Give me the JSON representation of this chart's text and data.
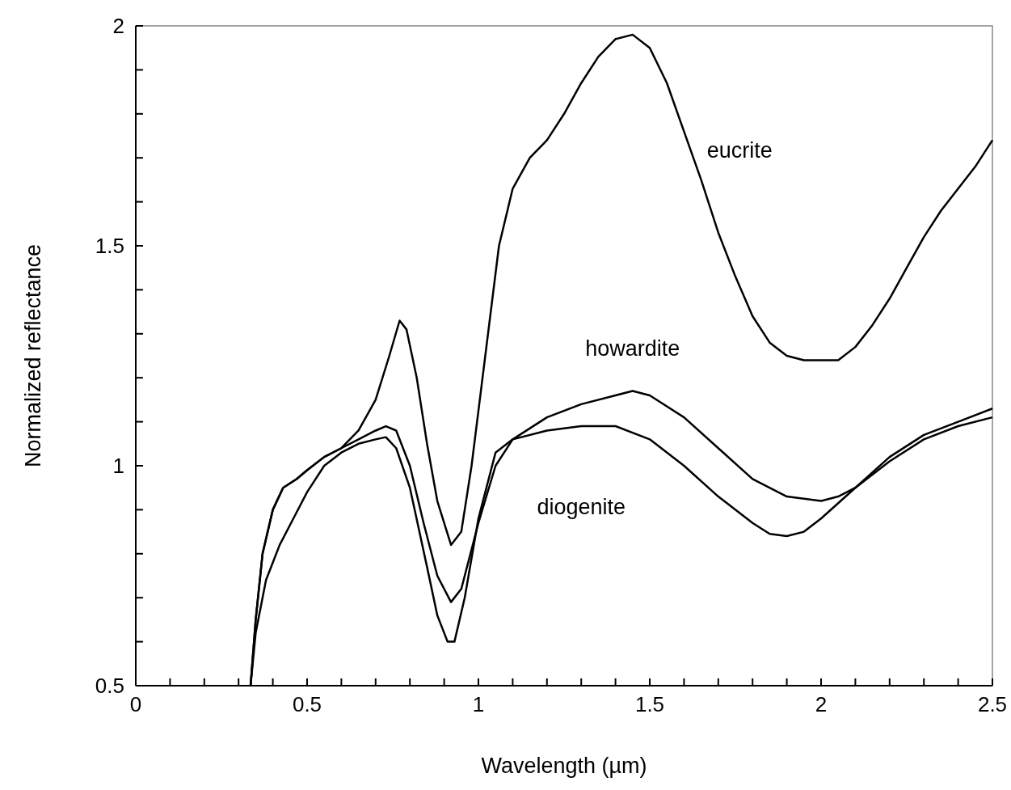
{
  "chart_data": {
    "type": "line",
    "xlabel": "Wavelength (µm)",
    "ylabel": "Normalized reflectance",
    "xlim": [
      0,
      2.5
    ],
    "ylim": [
      0.5,
      2
    ],
    "xticks": [
      0,
      {
        "value": 0.1,
        "label": null
      },
      {
        "value": 0.2,
        "label": null
      },
      {
        "value": 0.3,
        "label": null
      },
      {
        "value": 0.4,
        "label": null
      },
      0.5,
      {
        "value": 0.6,
        "label": null
      },
      {
        "value": 0.7,
        "label": null
      },
      {
        "value": 0.8,
        "label": null
      },
      {
        "value": 0.9,
        "label": null
      },
      1,
      {
        "value": 1.1,
        "label": null
      },
      {
        "value": 1.2,
        "label": null
      },
      {
        "value": 1.3,
        "label": null
      },
      {
        "value": 1.4,
        "label": null
      },
      1.5,
      {
        "value": 1.6,
        "label": null
      },
      {
        "value": 1.7,
        "label": null
      },
      {
        "value": 1.8,
        "label": null
      },
      {
        "value": 1.9,
        "label": null
      },
      2,
      {
        "value": 2.1,
        "label": null
      },
      {
        "value": 2.2,
        "label": null
      },
      {
        "value": 2.3,
        "label": null
      },
      {
        "value": 2.4,
        "label": null
      },
      2.5
    ],
    "yticks": [
      0.5,
      {
        "value": 0.6,
        "label": null
      },
      {
        "value": 0.7,
        "label": null
      },
      {
        "value": 0.8,
        "label": null
      },
      {
        "value": 0.9,
        "label": null
      },
      1,
      {
        "value": 1.1,
        "label": null
      },
      {
        "value": 1.2,
        "label": null
      },
      {
        "value": 1.3,
        "label": null
      },
      {
        "value": 1.4,
        "label": null
      },
      1.5,
      {
        "value": 1.6,
        "label": null
      },
      {
        "value": 1.7,
        "label": null
      },
      {
        "value": 1.8,
        "label": null
      },
      {
        "value": 1.9,
        "label": null
      },
      2
    ],
    "series": [
      {
        "name": "eucrite",
        "color": "#000000",
        "x": [
          0.335,
          0.35,
          0.37,
          0.4,
          0.43,
          0.47,
          0.5,
          0.55,
          0.6,
          0.65,
          0.7,
          0.74,
          0.77,
          0.79,
          0.82,
          0.85,
          0.88,
          0.92,
          0.95,
          0.98,
          1.02,
          1.06,
          1.1,
          1.15,
          1.2,
          1.25,
          1.3,
          1.35,
          1.4,
          1.45,
          1.5,
          1.55,
          1.6,
          1.65,
          1.7,
          1.75,
          1.8,
          1.85,
          1.9,
          1.95,
          2.0,
          2.05,
          2.1,
          2.15,
          2.2,
          2.25,
          2.3,
          2.35,
          2.4,
          2.45,
          2.5
        ],
        "values": [
          0.5,
          0.65,
          0.8,
          0.9,
          0.95,
          0.97,
          0.99,
          1.02,
          1.04,
          1.08,
          1.15,
          1.25,
          1.33,
          1.31,
          1.2,
          1.05,
          0.92,
          0.82,
          0.85,
          1.0,
          1.25,
          1.5,
          1.63,
          1.7,
          1.74,
          1.8,
          1.87,
          1.93,
          1.97,
          1.98,
          1.95,
          1.87,
          1.76,
          1.65,
          1.53,
          1.43,
          1.34,
          1.28,
          1.25,
          1.24,
          1.24,
          1.24,
          1.27,
          1.32,
          1.38,
          1.45,
          1.52,
          1.58,
          1.63,
          1.68,
          1.74
        ]
      },
      {
        "name": "howardite",
        "color": "#000000",
        "x": [
          0.335,
          0.35,
          0.37,
          0.4,
          0.43,
          0.47,
          0.5,
          0.55,
          0.6,
          0.65,
          0.7,
          0.73,
          0.76,
          0.8,
          0.84,
          0.88,
          0.92,
          0.95,
          1.0,
          1.05,
          1.1,
          1.2,
          1.3,
          1.4,
          1.45,
          1.5,
          1.6,
          1.7,
          1.8,
          1.9,
          2.0,
          2.05,
          2.1,
          2.2,
          2.3,
          2.4,
          2.5
        ],
        "values": [
          0.5,
          0.65,
          0.8,
          0.9,
          0.95,
          0.97,
          0.99,
          1.02,
          1.04,
          1.06,
          1.08,
          1.09,
          1.08,
          1.0,
          0.87,
          0.75,
          0.69,
          0.72,
          0.87,
          1.0,
          1.06,
          1.11,
          1.14,
          1.16,
          1.17,
          1.16,
          1.11,
          1.04,
          0.97,
          0.93,
          0.92,
          0.93,
          0.95,
          1.01,
          1.06,
          1.09,
          1.11
        ]
      },
      {
        "name": "diogenite",
        "color": "#000000",
        "x": [
          0.335,
          0.35,
          0.38,
          0.42,
          0.46,
          0.5,
          0.55,
          0.6,
          0.65,
          0.7,
          0.73,
          0.76,
          0.8,
          0.85,
          0.88,
          0.91,
          0.93,
          0.96,
          1.0,
          1.05,
          1.1,
          1.2,
          1.3,
          1.4,
          1.5,
          1.6,
          1.7,
          1.8,
          1.85,
          1.9,
          1.95,
          2.0,
          2.1,
          2.2,
          2.3,
          2.4,
          2.5
        ],
        "values": [
          0.5,
          0.62,
          0.74,
          0.82,
          0.88,
          0.94,
          1.0,
          1.03,
          1.05,
          1.06,
          1.065,
          1.04,
          0.95,
          0.77,
          0.66,
          0.6,
          0.6,
          0.7,
          0.88,
          1.03,
          1.06,
          1.08,
          1.09,
          1.09,
          1.06,
          1.0,
          0.93,
          0.87,
          0.845,
          0.84,
          0.85,
          0.88,
          0.95,
          1.02,
          1.07,
          1.1,
          1.13
        ]
      }
    ]
  }
}
